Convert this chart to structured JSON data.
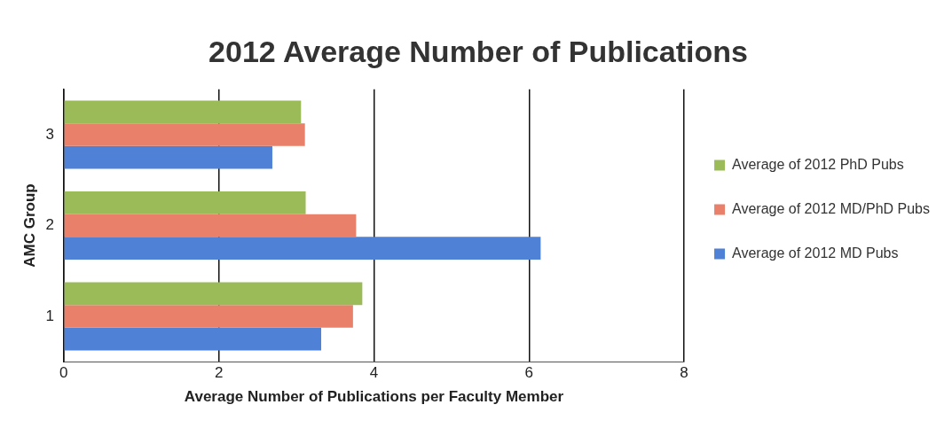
{
  "chart_data": {
    "type": "bar",
    "orientation": "horizontal",
    "title": "2012 Average Number of Publications",
    "xlabel": "Average Number of Publications per Faculty Member",
    "ylabel": "AMC Group",
    "categories": [
      "3",
      "2",
      "1"
    ],
    "series": [
      {
        "name": "Average of 2012 PhD Pubs",
        "color": "#9bbb59",
        "values": [
          3.06,
          3.12,
          3.85
        ]
      },
      {
        "name": "Average of 2012 MD/PhD Pubs",
        "color": "#e8806a",
        "values": [
          3.11,
          3.77,
          3.73
        ]
      },
      {
        "name": "Average of 2012 MD Pubs",
        "color": "#4f81d6",
        "values": [
          2.69,
          6.15,
          3.32
        ]
      }
    ],
    "xlim": [
      0,
      8
    ],
    "xticks": [
      0,
      2,
      4,
      6,
      8
    ],
    "grid": "x",
    "legend": "right"
  }
}
